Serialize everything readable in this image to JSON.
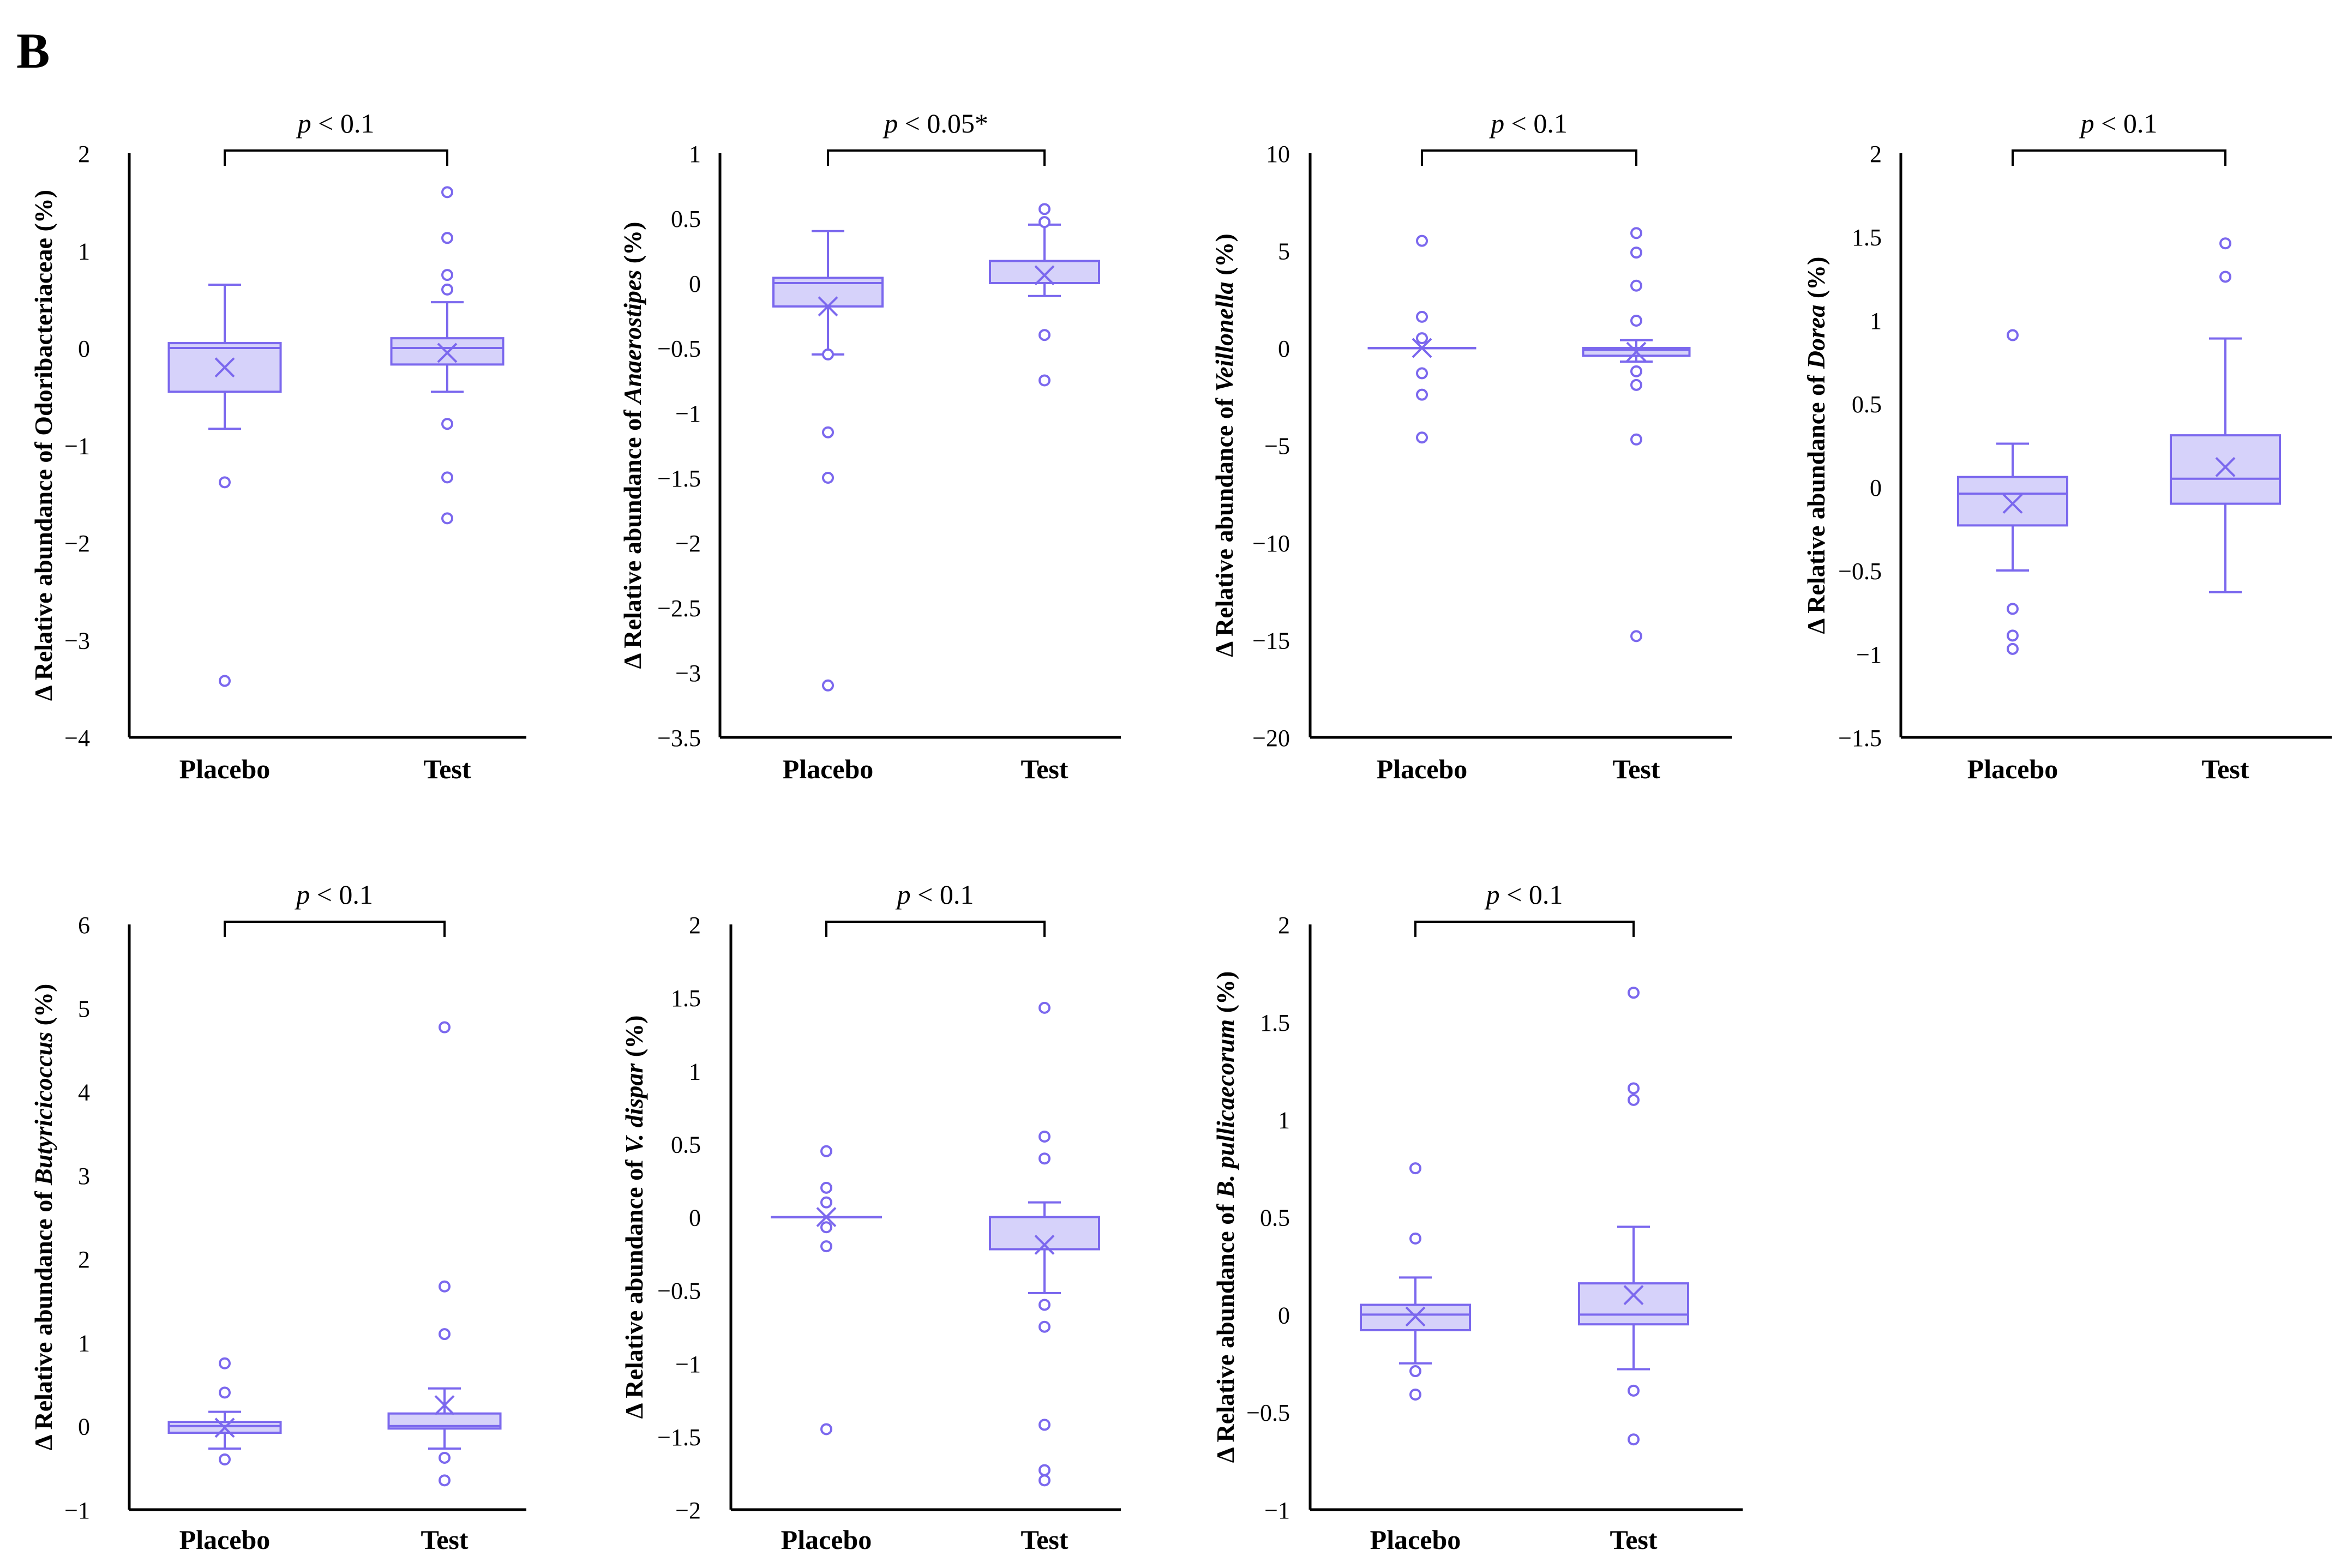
{
  "panel_label": "B",
  "colors": {
    "box_fill": "#D6D2FA",
    "box_stroke": "#7B68EE",
    "axis": "#000000",
    "text": "#000000"
  },
  "chart_data": [
    {
      "type": "box",
      "ylabel_prefix": "Δ Relative abundance of ",
      "ylabel_taxon": "Odoribacteriaceae",
      "ylabel_taxon_italic": false,
      "ylabel_suffix": " (%)",
      "significance_p": "p",
      "significance_rest": " < 0.1",
      "categories": [
        "Placebo",
        "Test"
      ],
      "ylim": [
        -4,
        2
      ],
      "yticks": [
        2,
        1,
        0,
        -1,
        -2,
        -3,
        -4
      ],
      "ytick_labels": [
        "2",
        "1",
        "0",
        "−1",
        "−2",
        "−3",
        "−4"
      ],
      "groups": [
        {
          "name": "Placebo",
          "whisker_low": -0.83,
          "q1": -0.45,
          "median": 0.0,
          "q3": 0.05,
          "whisker_high": 0.65,
          "mean": -0.2,
          "outliers": [
            -1.38,
            -3.42
          ]
        },
        {
          "name": "Test",
          "whisker_low": -0.45,
          "q1": -0.17,
          "median": 0.0,
          "q3": 0.1,
          "whisker_high": 0.47,
          "mean": -0.05,
          "outliers": [
            1.6,
            1.13,
            0.75,
            0.6,
            -0.78,
            -1.33,
            -1.75
          ]
        }
      ]
    },
    {
      "type": "box",
      "ylabel_prefix": "Δ Relative abundance of ",
      "ylabel_taxon": "Anaerostipes",
      "ylabel_taxon_italic": true,
      "ylabel_suffix": " (%)",
      "significance_p": "p",
      "significance_rest": " < 0.05*",
      "categories": [
        "Placebo",
        "Test"
      ],
      "ylim": [
        -3.5,
        1
      ],
      "yticks": [
        1,
        0.5,
        0,
        -0.5,
        -1,
        -1.5,
        -2,
        -2.5,
        -3,
        -3.5
      ],
      "ytick_labels": [
        "1",
        "0.5",
        "0",
        "−0.5",
        "−1",
        "−1.5",
        "−2",
        "−2.5",
        "−3",
        "−3.5"
      ],
      "groups": [
        {
          "name": "Placebo",
          "whisker_low": -0.55,
          "q1": -0.18,
          "median": 0.0,
          "q3": 0.04,
          "whisker_high": 0.4,
          "mean": -0.18,
          "outliers": [
            -0.55,
            -1.15,
            -1.5,
            -3.1
          ]
        },
        {
          "name": "Test",
          "whisker_low": -0.1,
          "q1": 0.0,
          "median": 0.0,
          "q3": 0.17,
          "whisker_high": 0.45,
          "mean": 0.06,
          "outliers": [
            0.57,
            0.47,
            -0.4,
            -0.75
          ]
        }
      ]
    },
    {
      "type": "box",
      "ylabel_prefix": "Δ Relative abundance of ",
      "ylabel_taxon": "Veillonella",
      "ylabel_taxon_italic": true,
      "ylabel_suffix": " (%)",
      "significance_p": "p",
      "significance_rest": " < 0.1",
      "categories": [
        "Placebo",
        "Test"
      ],
      "ylim": [
        -20,
        10
      ],
      "yticks": [
        10,
        5,
        0,
        -5,
        -10,
        -15,
        -20
      ],
      "ytick_labels": [
        "10",
        "5",
        "0",
        "−5",
        "−10",
        "−15",
        "−20"
      ],
      "groups": [
        {
          "name": "Placebo",
          "whisker_low": 0.0,
          "q1": 0.0,
          "median": 0.0,
          "q3": 0.0,
          "whisker_high": 0.0,
          "mean": 0.0,
          "outliers": [
            5.5,
            1.6,
            0.5,
            -1.3,
            -2.4,
            -4.6
          ]
        },
        {
          "name": "Test",
          "whisker_low": -0.7,
          "q1": -0.4,
          "median": -0.1,
          "q3": 0.0,
          "whisker_high": 0.4,
          "mean": -0.2,
          "outliers": [
            5.9,
            4.9,
            3.2,
            1.4,
            -1.2,
            -1.9,
            -4.7,
            -14.8
          ]
        }
      ]
    },
    {
      "type": "box",
      "ylabel_prefix": "Δ Relative abundance of ",
      "ylabel_taxon": "Dorea",
      "ylabel_taxon_italic": true,
      "ylabel_suffix": " (%)",
      "significance_p": "p",
      "significance_rest": " < 0.1",
      "categories": [
        "Placebo",
        "Test"
      ],
      "ylim": [
        -1.5,
        2
      ],
      "yticks": [
        2,
        1.5,
        1,
        0.5,
        0,
        -0.5,
        -1,
        -1.5
      ],
      "ytick_labels": [
        "2",
        "1.5",
        "1",
        "0.5",
        "0",
        "−0.5",
        "−1",
        "−1.5"
      ],
      "groups": [
        {
          "name": "Placebo",
          "whisker_low": -0.5,
          "q1": -0.23,
          "median": -0.04,
          "q3": 0.06,
          "whisker_high": 0.26,
          "mean": -0.1,
          "outliers": [
            0.91,
            -0.73,
            -0.89,
            -0.97
          ]
        },
        {
          "name": "Test",
          "whisker_low": -0.63,
          "q1": -0.1,
          "median": 0.05,
          "q3": 0.31,
          "whisker_high": 0.89,
          "mean": 0.12,
          "outliers": [
            1.46,
            1.26
          ]
        }
      ]
    },
    {
      "type": "box",
      "ylabel_prefix": "Δ Relative abundance of ",
      "ylabel_taxon": "Butyricicoccus",
      "ylabel_taxon_italic": true,
      "ylabel_suffix": " (%)",
      "significance_p": "p",
      "significance_rest": " < 0.1",
      "categories": [
        "Placebo",
        "Test"
      ],
      "ylim": [
        -1,
        6
      ],
      "yticks": [
        6,
        5,
        4,
        3,
        2,
        1,
        0,
        -1
      ],
      "ytick_labels": [
        "6",
        "5",
        "4",
        "3",
        "2",
        "1",
        "0",
        "−1"
      ],
      "groups": [
        {
          "name": "Placebo",
          "whisker_low": -0.27,
          "q1": -0.08,
          "median": 0.0,
          "q3": 0.05,
          "whisker_high": 0.17,
          "mean": -0.02,
          "outliers": [
            0.75,
            0.4,
            -0.4
          ]
        },
        {
          "name": "Test",
          "whisker_low": -0.27,
          "q1": -0.03,
          "median": 0.0,
          "q3": 0.15,
          "whisker_high": 0.45,
          "mean": 0.25,
          "outliers": [
            4.77,
            1.67,
            1.1,
            -0.38,
            -0.65
          ]
        }
      ]
    },
    {
      "type": "box",
      "ylabel_prefix": "Δ Relative abundance of ",
      "ylabel_taxon": "V. dispar",
      "ylabel_taxon_italic": true,
      "ylabel_suffix": " (%)",
      "significance_p": "p",
      "significance_rest": " < 0.1",
      "categories": [
        "Placebo",
        "Test"
      ],
      "ylim": [
        -2,
        2
      ],
      "yticks": [
        2,
        1.5,
        1,
        0.5,
        0,
        -0.5,
        -1,
        -1.5,
        -2
      ],
      "ytick_labels": [
        "2",
        "1.5",
        "1",
        "0.5",
        "0",
        "−0.5",
        "−1",
        "−1.5",
        "−2"
      ],
      "groups": [
        {
          "name": "Placebo",
          "whisker_low": 0.0,
          "q1": 0.0,
          "median": 0.0,
          "q3": 0.0,
          "whisker_high": 0.0,
          "mean": 0.0,
          "outliers": [
            0.45,
            0.2,
            0.1,
            -0.07,
            -0.2,
            -1.45
          ]
        },
        {
          "name": "Test",
          "whisker_low": -0.52,
          "q1": -0.22,
          "median": 0.0,
          "q3": 0.0,
          "whisker_high": 0.1,
          "mean": -0.19,
          "outliers": [
            1.43,
            0.55,
            0.4,
            -0.6,
            -0.75,
            -1.42,
            -1.73,
            -1.8
          ]
        }
      ]
    },
    {
      "type": "box",
      "ylabel_prefix": "Δ Relative abundance of ",
      "ylabel_taxon": "B. pullicaecorum",
      "ylabel_taxon_italic": true,
      "ylabel_suffix": " (%)",
      "significance_p": "p",
      "significance_rest": " < 0.1",
      "categories": [
        "Placebo",
        "Test"
      ],
      "ylim": [
        -1,
        2
      ],
      "yticks": [
        2,
        1.5,
        1,
        0.5,
        0,
        -0.5,
        -1
      ],
      "ytick_labels": [
        "2",
        "1.5",
        "1",
        "0.5",
        "0",
        "−0.5",
        "−1"
      ],
      "groups": [
        {
          "name": "Placebo",
          "whisker_low": -0.25,
          "q1": -0.08,
          "median": 0.0,
          "q3": 0.05,
          "whisker_high": 0.19,
          "mean": -0.01,
          "outliers": [
            0.75,
            0.39,
            -0.29,
            -0.41
          ]
        },
        {
          "name": "Test",
          "whisker_low": -0.28,
          "q1": -0.05,
          "median": 0.0,
          "q3": 0.16,
          "whisker_high": 0.45,
          "mean": 0.1,
          "outliers": [
            1.65,
            1.16,
            1.1,
            -0.39,
            -0.64
          ]
        }
      ]
    }
  ]
}
